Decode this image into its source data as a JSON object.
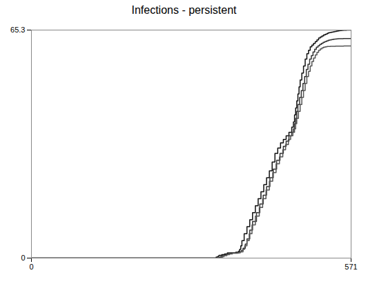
{
  "chart_data": {
    "type": "step",
    "title": "Infections - persistent",
    "xlim": [
      0,
      571
    ],
    "ylim": [
      0,
      65.3
    ],
    "xticks": [
      0,
      571
    ],
    "yticks": [
      0,
      65.3
    ],
    "grid": false,
    "series": [
      {
        "color": "#111111",
        "x": [
          0,
          300,
          330,
          333,
          335,
          340,
          345,
          350,
          360,
          365,
          370,
          372,
          374,
          376,
          380,
          385,
          390,
          395,
          400,
          405,
          410,
          415,
          420,
          425,
          430,
          435,
          440,
          445,
          450,
          455,
          460,
          465,
          468,
          470,
          472,
          474,
          476,
          478,
          480,
          483,
          486,
          489,
          492,
          495,
          498,
          501,
          504,
          507,
          510,
          513,
          516,
          519,
          522,
          525,
          528,
          530,
          533,
          536,
          539,
          542,
          545,
          548,
          551,
          554,
          557,
          560,
          563,
          566,
          569,
          571
        ],
        "values": [
          0,
          0,
          0.3,
          0.5,
          0.8,
          1.0,
          1.2,
          1.5,
          1.5,
          1.7,
          2.0,
          2.5,
          3.5,
          5.0,
          7.0,
          9.0,
          11.0,
          13.0,
          15.0,
          17.0,
          19.0,
          21.0,
          23.0,
          25.0,
          27.5,
          30.0,
          31.5,
          33.0,
          34.0,
          35.0,
          36.0,
          37.5,
          39.0,
          41.0,
          43.0,
          45.0,
          47.0,
          49.0,
          51.0,
          53.0,
          55.0,
          57.0,
          58.5,
          59.5,
          60.5,
          61.0,
          61.5,
          62.0,
          62.5,
          63.0,
          63.3,
          63.6,
          63.9,
          64.1,
          64.3,
          64.5,
          64.6,
          64.7,
          64.8,
          64.9,
          65.0,
          65.1,
          65.15,
          65.2,
          65.25,
          65.27,
          65.29,
          65.3,
          65.3,
          65.3
        ]
      },
      {
        "color": "#333333",
        "x": [
          0,
          310,
          335,
          338,
          341,
          346,
          351,
          356,
          365,
          370,
          375,
          378,
          382,
          385,
          390,
          395,
          402,
          408,
          414,
          420,
          426,
          432,
          438,
          444,
          450,
          455,
          460,
          465,
          468,
          470,
          472,
          474,
          476,
          479,
          482,
          485,
          488,
          491,
          494,
          497,
          500,
          503,
          506,
          509,
          512,
          515,
          518,
          521,
          524,
          527,
          530,
          533,
          536,
          539,
          542,
          545,
          548,
          551,
          554,
          557,
          560,
          563,
          566,
          569,
          571
        ],
        "values": [
          0,
          0,
          0.2,
          0.5,
          0.8,
          1.0,
          1.3,
          1.5,
          1.5,
          1.8,
          2.2,
          2.8,
          4.0,
          5.5,
          8.0,
          10.5,
          13.0,
          15.5,
          18.0,
          20.5,
          23.0,
          25.5,
          28.0,
          30.0,
          32.0,
          33.5,
          35.0,
          36.0,
          37.0,
          38.5,
          40.0,
          42.0,
          44.0,
          46.0,
          48.0,
          50.0,
          52.0,
          54.0,
          55.5,
          57.0,
          58.0,
          59.0,
          59.8,
          60.4,
          60.8,
          61.2,
          61.5,
          61.8,
          62.0,
          62.2,
          62.4,
          62.5,
          62.6,
          62.7,
          62.75,
          62.8,
          62.82,
          62.84,
          62.85,
          62.86,
          62.87,
          62.88,
          62.89,
          62.9,
          62.9
        ]
      },
      {
        "color": "#555555",
        "x": [
          0,
          315,
          338,
          341,
          344,
          349,
          354,
          359,
          368,
          373,
          378,
          381,
          385,
          389,
          394,
          400,
          407,
          413,
          419,
          425,
          431,
          437,
          443,
          449,
          454,
          459,
          463,
          467,
          470,
          472,
          474,
          477,
          480,
          483,
          486,
          489,
          492,
          495,
          498,
          501,
          504,
          507,
          510,
          513,
          516,
          519,
          522,
          525,
          528,
          531,
          534,
          537,
          540,
          543,
          546,
          549,
          552,
          555,
          558,
          561,
          564,
          567,
          570,
          571
        ],
        "values": [
          0,
          0,
          0.2,
          0.4,
          0.7,
          1.0,
          1.2,
          1.4,
          1.5,
          1.8,
          2.5,
          3.5,
          5.0,
          7.0,
          9.5,
          12.0,
          14.5,
          17.0,
          19.5,
          22.0,
          24.5,
          27.0,
          29.0,
          31.0,
          32.5,
          34.0,
          35.0,
          36.0,
          37.0,
          38.5,
          40.0,
          42.0,
          44.0,
          46.0,
          48.0,
          50.0,
          52.0,
          53.5,
          55.0,
          56.3,
          57.3,
          58.2,
          58.9,
          59.5,
          59.9,
          60.2,
          60.4,
          60.5,
          60.6,
          60.62,
          60.64,
          60.66,
          60.67,
          60.68,
          60.69,
          60.7,
          60.71,
          60.72,
          60.73,
          60.74,
          60.74,
          60.75,
          60.75,
          60.75
        ]
      }
    ]
  }
}
